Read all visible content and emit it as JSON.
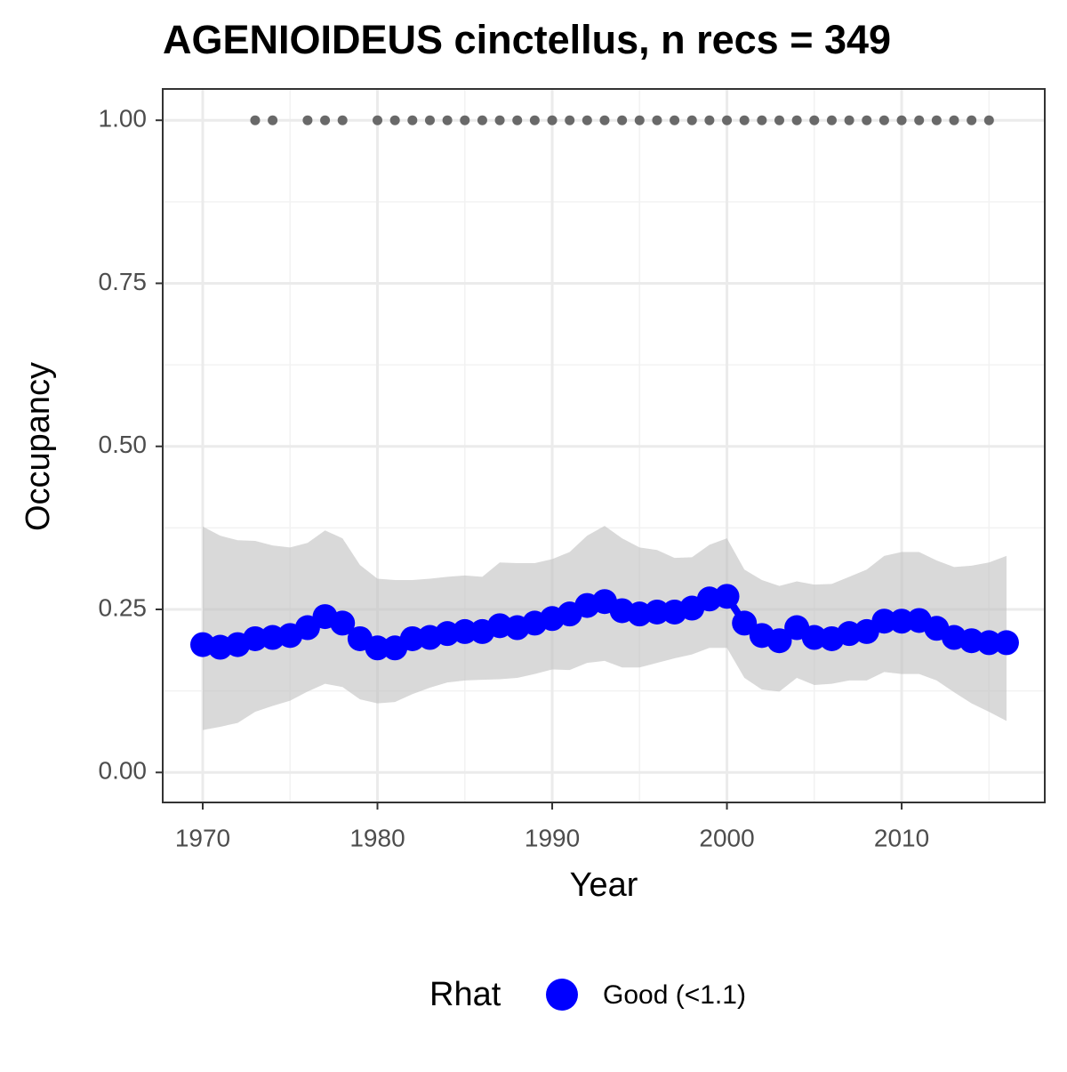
{
  "chart_data": {
    "type": "line",
    "title": "AGENIOIDEUS cinctellus, n recs = 349",
    "x_label": "Year",
    "y_label": "Occupancy",
    "x": [
      1970,
      1971,
      1972,
      1973,
      1974,
      1975,
      1976,
      1977,
      1978,
      1979,
      1980,
      1981,
      1982,
      1983,
      1984,
      1985,
      1986,
      1987,
      1988,
      1989,
      1990,
      1991,
      1992,
      1993,
      1994,
      1995,
      1996,
      1997,
      1998,
      1999,
      2000,
      2001,
      2002,
      2003,
      2004,
      2005,
      2006,
      2007,
      2008,
      2009,
      2010,
      2011,
      2012,
      2013,
      2014,
      2015,
      2016
    ],
    "series": [
      {
        "name": "Good (<1.1)",
        "color": "#0000ff",
        "values": [
          0.196,
          0.192,
          0.196,
          0.205,
          0.207,
          0.21,
          0.222,
          0.239,
          0.229,
          0.205,
          0.191,
          0.191,
          0.205,
          0.207,
          0.213,
          0.216,
          0.216,
          0.225,
          0.222,
          0.229,
          0.236,
          0.243,
          0.256,
          0.262,
          0.248,
          0.243,
          0.246,
          0.246,
          0.252,
          0.266,
          0.27,
          0.229,
          0.21,
          0.202,
          0.222,
          0.207,
          0.205,
          0.213,
          0.216,
          0.232,
          0.232,
          0.233,
          0.221,
          0.207,
          0.202,
          0.199,
          0.199
        ]
      }
    ],
    "band": {
      "color": "#bfbfbf",
      "upper": [
        0.377,
        0.363,
        0.356,
        0.355,
        0.348,
        0.345,
        0.352,
        0.371,
        0.359,
        0.318,
        0.297,
        0.295,
        0.295,
        0.297,
        0.3,
        0.302,
        0.3,
        0.322,
        0.321,
        0.321,
        0.327,
        0.338,
        0.363,
        0.378,
        0.359,
        0.345,
        0.341,
        0.329,
        0.33,
        0.349,
        0.359,
        0.311,
        0.295,
        0.286,
        0.293,
        0.288,
        0.289,
        0.3,
        0.311,
        0.332,
        0.338,
        0.338,
        0.325,
        0.315,
        0.317,
        0.322,
        0.332
      ],
      "lower": [
        0.065,
        0.07,
        0.076,
        0.093,
        0.102,
        0.11,
        0.124,
        0.136,
        0.131,
        0.112,
        0.106,
        0.108,
        0.12,
        0.13,
        0.138,
        0.141,
        0.142,
        0.143,
        0.145,
        0.151,
        0.158,
        0.157,
        0.168,
        0.171,
        0.161,
        0.161,
        0.168,
        0.175,
        0.181,
        0.191,
        0.191,
        0.145,
        0.127,
        0.124,
        0.145,
        0.134,
        0.136,
        0.141,
        0.141,
        0.154,
        0.151,
        0.151,
        0.141,
        0.123,
        0.106,
        0.093,
        0.079
      ]
    },
    "detections": {
      "color": "#696969",
      "x": [
        1973,
        1974,
        1976,
        1977,
        1978,
        1980,
        1981,
        1982,
        1983,
        1984,
        1985,
        1986,
        1987,
        1988,
        1989,
        1990,
        1991,
        1992,
        1993,
        1994,
        1995,
        1996,
        1997,
        1998,
        1999,
        2000,
        2001,
        2002,
        2003,
        2004,
        2005,
        2006,
        2007,
        2008,
        2009,
        2010,
        2011,
        2012,
        2013,
        2014,
        2015
      ],
      "values": [
        1,
        1,
        1,
        1,
        1,
        1,
        1,
        1,
        1,
        1,
        1,
        1,
        1,
        1,
        1,
        1,
        1,
        1,
        1,
        1,
        1,
        1,
        1,
        1,
        1,
        1,
        1,
        1,
        1,
        1,
        1,
        1,
        1,
        1,
        1,
        1,
        1,
        1,
        1,
        1,
        1
      ]
    },
    "xlim": [
      1967.71,
      2018.19
    ],
    "ylim": [
      -0.046,
      1.048
    ],
    "xticks": [
      1970,
      1980,
      1990,
      2000,
      2010
    ],
    "yticks": [
      {
        "value": 0,
        "label": "0.00"
      },
      {
        "value": 0.25,
        "label": "0.25"
      },
      {
        "value": 0.5,
        "label": "0.50"
      },
      {
        "value": 0.75,
        "label": "0.75"
      },
      {
        "value": 1,
        "label": "1.00"
      }
    ],
    "x_minor_grid": [
      1975,
      1985,
      1995,
      2005,
      2015
    ],
    "y_minor_grid": [
      0.125,
      0.375,
      0.625,
      0.875
    ],
    "grid": true,
    "legend": {
      "title": "Rhat",
      "position": "bottom"
    }
  }
}
